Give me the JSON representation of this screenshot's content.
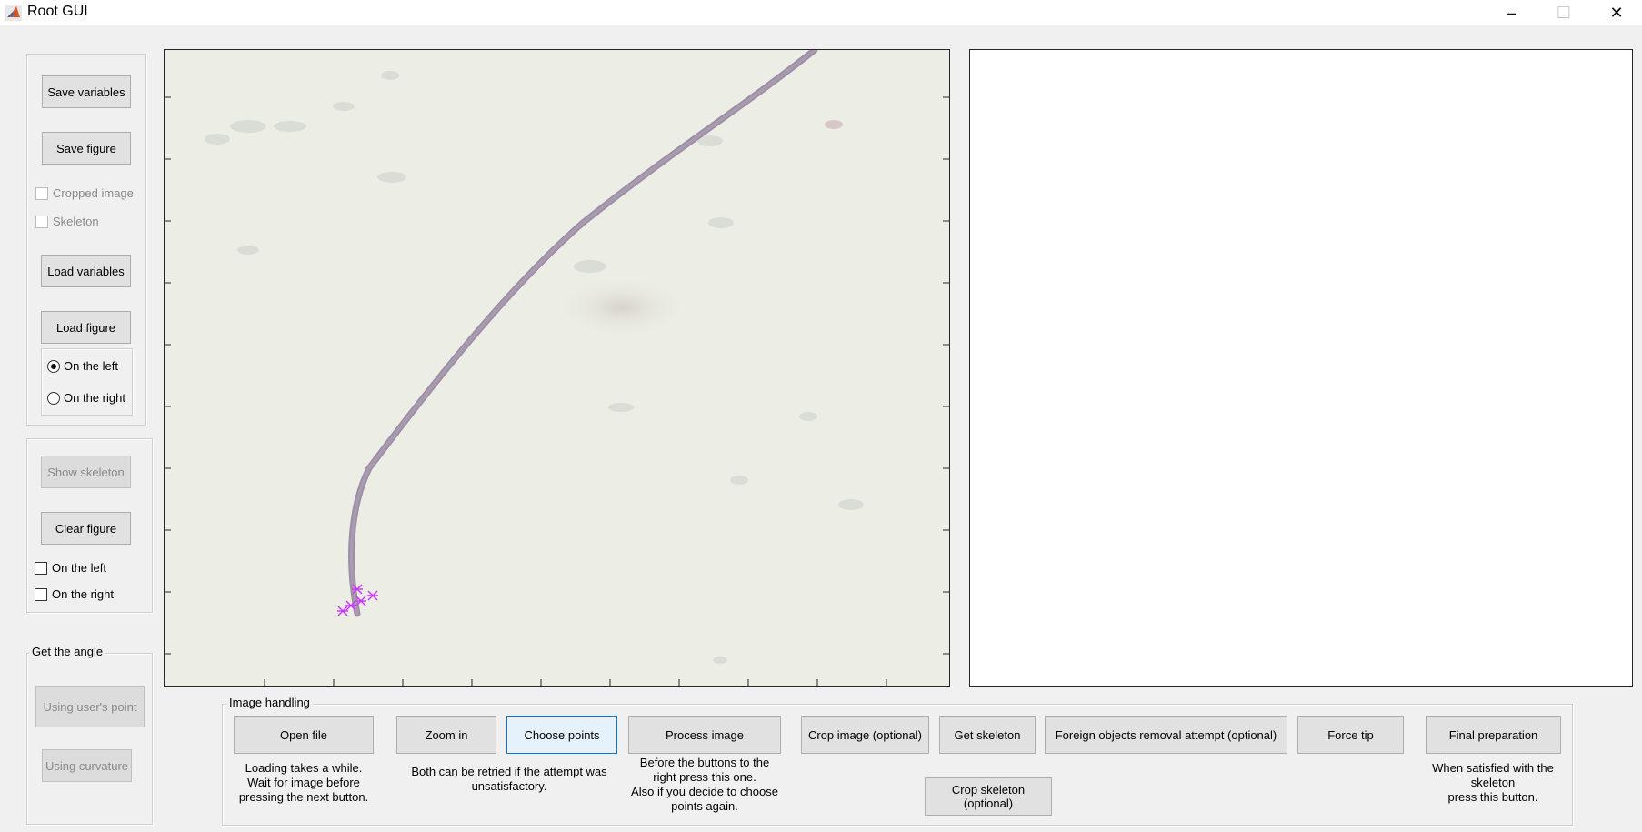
{
  "window": {
    "title": "Root GUI",
    "minimize_glyph": "–",
    "maximize_glyph": "☐",
    "close_glyph": "✕"
  },
  "file_panel": {
    "save_variables": "Save variables",
    "save_figure": "Save figure",
    "cropped_image": "Cropped image",
    "skeleton": "Skeleton",
    "load_variables": "Load variables",
    "load_figure": "Load figure",
    "on_the_left": "On the left",
    "on_the_right": "On the right",
    "selected_side": "left"
  },
  "figure_panel": {
    "show_skeleton": "Show skeleton",
    "clear_figure": "Clear figure",
    "on_the_left": "On the left",
    "on_the_right": "On the right"
  },
  "angle_panel": {
    "title": "Get the angle",
    "using_users_point": "Using user's point",
    "using_curvature": "Using curvature"
  },
  "image_handling": {
    "title": "Image handling",
    "open_file": "Open file",
    "open_file_note": [
      "Loading takes a while.",
      "Wait for  image before",
      "pressing the next button."
    ],
    "zoom_in": "Zoom in",
    "choose_points": "Choose points",
    "retry_note": [
      "Both can be retried if the attempt was",
      "unsatisfactory."
    ],
    "process_image": "Process image",
    "process_note": [
      "Before the buttons to the",
      "right press this one.",
      "Also if you decide to choose",
      "points again."
    ],
    "crop_image": "Crop image (optional)",
    "get_skeleton": "Get skeleton",
    "foreign_objects": "Foreign objects removal attempt (optional)",
    "force_tip": "Force tip",
    "crop_skeleton": "Crop skeleton (optional)",
    "final_preparation": "Final preparation",
    "final_note": [
      "When satisfied with the",
      "skeleton",
      "press this button."
    ]
  },
  "image_view": {
    "root_color": "#8f7f9a",
    "background_color": "#eceee6",
    "marker_color": "#cc33ff",
    "marker_count": 5
  },
  "colors": {
    "window_bg": "#f0f0f0",
    "active_border": "#0078d7",
    "disabled_text": "#8a8a8a"
  }
}
